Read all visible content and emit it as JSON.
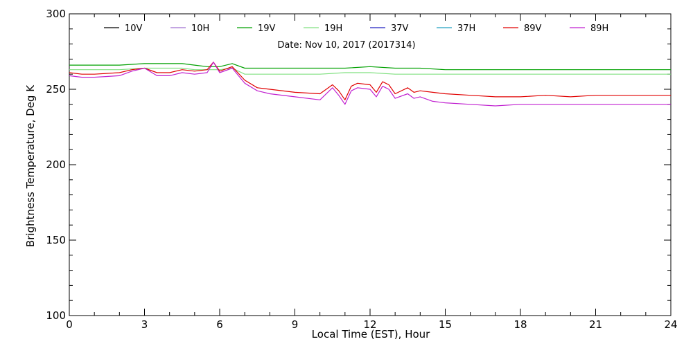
{
  "chart_data": {
    "type": "line",
    "title": "",
    "annotation": "Date: Nov 10, 2017 (2017314)",
    "xlabel": "Local Time (EST), Hour",
    "ylabel": "Brightness Temperature, Deg K",
    "xlim": [
      0,
      24
    ],
    "ylim": [
      100,
      300
    ],
    "xticks": [
      0,
      3,
      6,
      9,
      12,
      15,
      18,
      21,
      24
    ],
    "yticks": [
      100,
      150,
      200,
      250,
      300
    ],
    "grid": false,
    "legend_position": "top",
    "series": [
      {
        "name": "10V",
        "color": "#000000",
        "x": [],
        "y": []
      },
      {
        "name": "10H",
        "color": "#a070d0",
        "x": [],
        "y": []
      },
      {
        "name": "19V",
        "color": "#00a000",
        "x": [
          0,
          1,
          2,
          3,
          4,
          4.5,
          5,
          5.5,
          6,
          6.5,
          7,
          8,
          9,
          10,
          11,
          12,
          13,
          14,
          15,
          16,
          17,
          18,
          19,
          20,
          21,
          22,
          23,
          24
        ],
        "y": [
          266,
          266,
          266,
          267,
          267,
          267,
          266,
          265,
          265,
          267,
          264,
          264,
          264,
          264,
          264,
          265,
          264,
          264,
          263,
          263,
          263,
          263,
          263,
          263,
          263,
          263,
          263,
          263
        ]
      },
      {
        "name": "19H",
        "color": "#80e080",
        "x": [
          0,
          1,
          2,
          3,
          4,
          4.5,
          5,
          5.5,
          6,
          6.5,
          7,
          8,
          9,
          10,
          11,
          12,
          13,
          14,
          15,
          16,
          17,
          18,
          19,
          20,
          21,
          22,
          23,
          24
        ],
        "y": [
          263,
          263,
          263,
          264,
          264,
          264,
          263,
          263,
          263,
          264,
          260,
          260,
          260,
          260,
          261,
          261,
          260,
          260,
          260,
          260,
          260,
          260,
          260,
          260,
          260,
          260,
          260,
          260
        ]
      },
      {
        "name": "37V",
        "color": "#2020c0",
        "x": [],
        "y": []
      },
      {
        "name": "37H",
        "color": "#20a0c0",
        "x": [],
        "y": []
      },
      {
        "name": "89V",
        "color": "#e00000",
        "x": [
          0,
          0.5,
          1,
          2,
          2.5,
          3,
          3.5,
          4,
          4.5,
          5,
          5.5,
          5.75,
          6,
          6.5,
          7,
          7.5,
          8,
          9,
          10,
          10.5,
          10.75,
          11,
          11.25,
          11.5,
          12,
          12.25,
          12.5,
          12.75,
          13,
          13.5,
          13.75,
          14,
          14.5,
          15,
          16,
          17,
          18,
          19,
          20,
          21,
          22,
          23,
          24
        ],
        "y": [
          261,
          260,
          260,
          261,
          263,
          264,
          261,
          261,
          263,
          262,
          263,
          268,
          262,
          265,
          256,
          251,
          250,
          248,
          247,
          253,
          249,
          243,
          252,
          254,
          253,
          248,
          255,
          253,
          247,
          251,
          248,
          249,
          248,
          247,
          246,
          245,
          245,
          246,
          245,
          246,
          246,
          246,
          246
        ]
      },
      {
        "name": "89H",
        "color": "#c020d0",
        "x": [
          0,
          0.5,
          1,
          2,
          2.5,
          3,
          3.5,
          4,
          4.5,
          5,
          5.5,
          5.75,
          6,
          6.5,
          7,
          7.5,
          8,
          9,
          10,
          10.5,
          10.75,
          11,
          11.25,
          11.5,
          12,
          12.25,
          12.5,
          12.75,
          13,
          13.5,
          13.75,
          14,
          14.5,
          15,
          16,
          17,
          18,
          19,
          20,
          21,
          22,
          23,
          24
        ],
        "y": [
          259,
          258,
          258,
          259,
          262,
          264,
          259,
          259,
          261,
          260,
          261,
          268,
          261,
          264,
          254,
          249,
          247,
          245,
          243,
          251,
          246,
          240,
          249,
          251,
          250,
          245,
          252,
          250,
          244,
          247,
          244,
          245,
          242,
          241,
          240,
          239,
          240,
          240,
          240,
          240,
          240,
          240,
          240
        ]
      }
    ]
  }
}
